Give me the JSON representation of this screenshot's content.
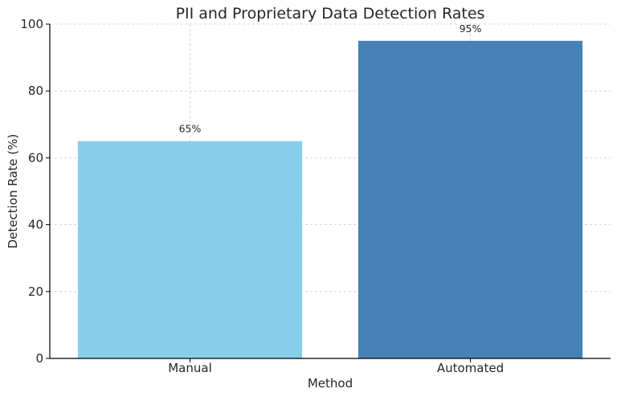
{
  "chart_data": {
    "type": "bar",
    "title": "PII and Proprietary Data Detection Rates",
    "xlabel": "Method",
    "ylabel": "Detection Rate (%)",
    "categories": [
      "Manual",
      "Automated"
    ],
    "values": [
      65,
      95
    ],
    "data_labels": [
      "65%",
      "95%"
    ],
    "colors": [
      "#87ceeb",
      "#4682b4"
    ],
    "ylim": [
      0,
      100
    ],
    "yticks": [
      0,
      20,
      40,
      60,
      80,
      100
    ],
    "grid": true,
    "legend": "none"
  }
}
